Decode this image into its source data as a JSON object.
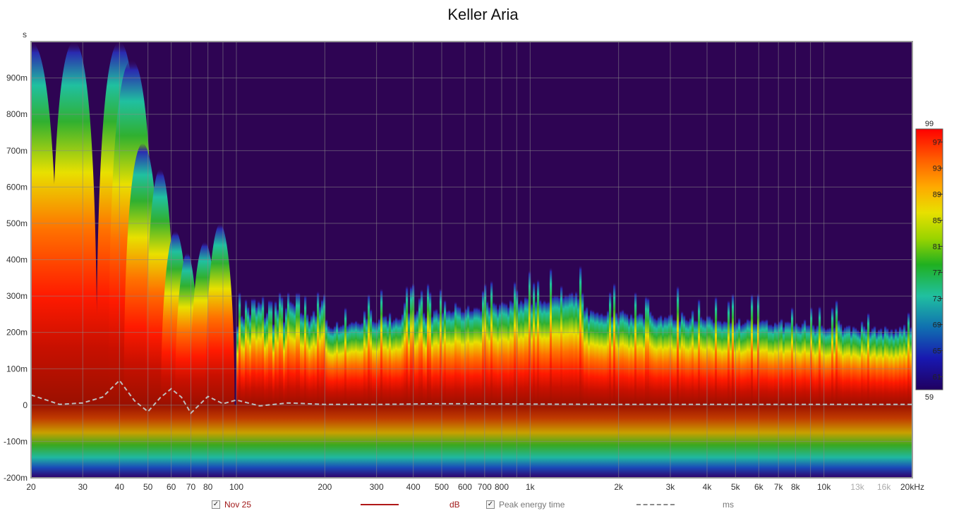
{
  "chart_data": {
    "type": "heatmap",
    "title": "Keller Aria",
    "y_unit_label": "s",
    "x_scale": "log",
    "xlim": [
      20,
      20000
    ],
    "ylim": [
      -0.2,
      1.0
    ],
    "x_tick_labels": [
      {
        "v": 20,
        "t": "20"
      },
      {
        "v": 30,
        "t": "30"
      },
      {
        "v": 40,
        "t": "40"
      },
      {
        "v": 50,
        "t": "50"
      },
      {
        "v": 60,
        "t": "60"
      },
      {
        "v": 70,
        "t": "70"
      },
      {
        "v": 80,
        "t": "80"
      },
      {
        "v": 100,
        "t": "100"
      },
      {
        "v": 200,
        "t": "200"
      },
      {
        "v": 300,
        "t": "300"
      },
      {
        "v": 400,
        "t": "400"
      },
      {
        "v": 500,
        "t": "500"
      },
      {
        "v": 600,
        "t": "600"
      },
      {
        "v": 700,
        "t": "700"
      },
      {
        "v": 800,
        "t": "800"
      },
      {
        "v": 1000,
        "t": "1k"
      },
      {
        "v": 2000,
        "t": "2k"
      },
      {
        "v": 3000,
        "t": "3k"
      },
      {
        "v": 4000,
        "t": "4k"
      },
      {
        "v": 5000,
        "t": "5k"
      },
      {
        "v": 6000,
        "t": "6k"
      },
      {
        "v": 7000,
        "t": "7k"
      },
      {
        "v": 8000,
        "t": "8k"
      },
      {
        "v": 10000,
        "t": "10k"
      },
      {
        "v": 13000,
        "t": "13k",
        "muted": true
      },
      {
        "v": 16000,
        "t": "16k",
        "muted": true
      },
      {
        "v": 20000,
        "t": "20kHz"
      }
    ],
    "y_tick_labels": [
      {
        "v": 0.9,
        "t": "900m"
      },
      {
        "v": 0.8,
        "t": "800m"
      },
      {
        "v": 0.7,
        "t": "700m"
      },
      {
        "v": 0.6,
        "t": "600m"
      },
      {
        "v": 0.5,
        "t": "500m"
      },
      {
        "v": 0.4,
        "t": "400m"
      },
      {
        "v": 0.3,
        "t": "300m"
      },
      {
        "v": 0.2,
        "t": "200m"
      },
      {
        "v": 0.1,
        "t": "100m"
      },
      {
        "v": 0.0,
        "t": "0"
      },
      {
        "v": -0.1,
        "t": "-100m"
      },
      {
        "v": -0.2,
        "t": "-200m"
      }
    ],
    "colorbar": {
      "min": 59,
      "max": 99,
      "labels": [
        99,
        97,
        93,
        89,
        85,
        81,
        77,
        73,
        69,
        65,
        61,
        59
      ],
      "colors": [
        "#ff0000",
        "#ff6000",
        "#ffa800",
        "#e8e000",
        "#9ad400",
        "#20b020",
        "#20c0a0",
        "#1070b0",
        "#1818b0",
        "#200060"
      ]
    },
    "background_color": "#2e0453",
    "peak_energy_time_ms": [
      {
        "f": 20,
        "t": 28
      },
      {
        "f": 25,
        "t": 2
      },
      {
        "f": 30,
        "t": 6
      },
      {
        "f": 35,
        "t": 22
      },
      {
        "f": 40,
        "t": 68
      },
      {
        "f": 45,
        "t": 12
      },
      {
        "f": 50,
        "t": -18
      },
      {
        "f": 55,
        "t": 20
      },
      {
        "f": 60,
        "t": 45
      },
      {
        "f": 65,
        "t": 22
      },
      {
        "f": 70,
        "t": -22
      },
      {
        "f": 80,
        "t": 24
      },
      {
        "f": 90,
        "t": 4
      },
      {
        "f": 100,
        "t": 14
      },
      {
        "f": 120,
        "t": -2
      },
      {
        "f": 150,
        "t": 6
      },
      {
        "f": 200,
        "t": 2
      },
      {
        "f": 300,
        "t": 2
      },
      {
        "f": 500,
        "t": 4
      },
      {
        "f": 1000,
        "t": 3
      },
      {
        "f": 2000,
        "t": 2
      },
      {
        "f": 5000,
        "t": 2
      },
      {
        "f": 10000,
        "t": 2
      },
      {
        "f": 20000,
        "t": 2
      }
    ],
    "legend": {
      "series1_label": "Nov 25",
      "series1_unit": "dB",
      "series1_checked": true,
      "series1_color": "#b01818",
      "series2_label": "Peak energy time",
      "series2_unit": "ms",
      "series2_checked": true,
      "series2_color": "#8a8a8a"
    }
  }
}
